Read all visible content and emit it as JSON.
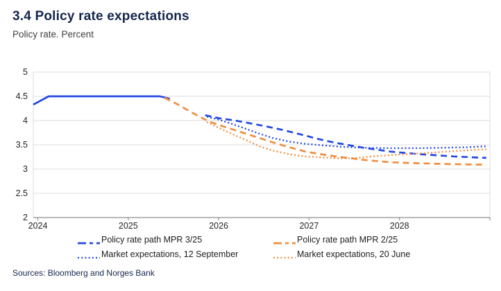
{
  "header": {
    "title": "3.4 Policy rate expectations",
    "subtitle": "Policy rate. Percent"
  },
  "footer": {
    "sources": "Sources: Bloomberg and Norges Bank"
  },
  "colors": {
    "blue": "#2348e4",
    "orange": "#ef8e3f",
    "navy": "#15254d",
    "grid": "#dcdcdc",
    "axis": "#8f8f8f",
    "tick_text": "#242424"
  },
  "chart_data": {
    "type": "line",
    "title": "3.4 Policy rate expectations",
    "subtitle": "Policy rate. Percent",
    "xlabel": "",
    "ylabel": "Policy rate. Percent",
    "xlim": [
      2023.95,
      2029.0
    ],
    "ylim": [
      2,
      5
    ],
    "yticks": [
      5,
      4.5,
      4,
      3.5,
      3,
      2.5,
      2
    ],
    "xticks": [
      2024,
      2025,
      2026,
      2027,
      2028
    ],
    "grid": true,
    "legend_position": "bottom",
    "series": [
      {
        "name": "Policy rate (historical)",
        "color": "#2348e4",
        "style": "solid",
        "in_legend": false,
        "points": [
          [
            2023.95,
            4.33
          ],
          [
            2024.12,
            4.5
          ],
          [
            2025.35,
            4.5
          ],
          [
            2025.46,
            4.45
          ]
        ]
      },
      {
        "name": "Policy rate path MPR 3/25",
        "color": "#2348e4",
        "style": "dashed",
        "in_legend": true,
        "points": [
          [
            2025.85,
            4.11
          ],
          [
            2026.0,
            4.05
          ],
          [
            2026.15,
            4.01
          ],
          [
            2026.3,
            3.96
          ],
          [
            2026.5,
            3.89
          ],
          [
            2026.7,
            3.81
          ],
          [
            2026.96,
            3.69
          ],
          [
            2027.1,
            3.62
          ],
          [
            2027.27,
            3.55
          ],
          [
            2027.45,
            3.49
          ],
          [
            2027.6,
            3.44
          ],
          [
            2027.9,
            3.36
          ],
          [
            2028.2,
            3.31
          ],
          [
            2028.6,
            3.26
          ],
          [
            2028.96,
            3.23
          ]
        ]
      },
      {
        "name": "Policy rate path MPR 2/25",
        "color": "#ef8e3f",
        "style": "dashed",
        "in_legend": true,
        "points": [
          [
            2025.4,
            4.47
          ],
          [
            2025.55,
            4.33
          ],
          [
            2025.7,
            4.17
          ],
          [
            2025.88,
            3.99
          ],
          [
            2026.0,
            3.91
          ],
          [
            2026.15,
            3.82
          ],
          [
            2026.35,
            3.7
          ],
          [
            2026.6,
            3.55
          ],
          [
            2026.8,
            3.44
          ],
          [
            2026.96,
            3.36
          ],
          [
            2027.15,
            3.3
          ],
          [
            2027.3,
            3.26
          ],
          [
            2027.6,
            3.19
          ],
          [
            2027.9,
            3.14
          ],
          [
            2028.2,
            3.12
          ],
          [
            2028.6,
            3.1
          ],
          [
            2028.96,
            3.09
          ]
        ]
      },
      {
        "name": "Market expectations, 12 September",
        "color": "#2348e4",
        "style": "dotted",
        "in_legend": true,
        "points": [
          [
            2025.87,
            4.08
          ],
          [
            2026.0,
            4.02
          ],
          [
            2026.15,
            3.93
          ],
          [
            2026.3,
            3.83
          ],
          [
            2026.45,
            3.73
          ],
          [
            2026.6,
            3.64
          ],
          [
            2026.8,
            3.56
          ],
          [
            2026.96,
            3.52
          ],
          [
            2027.15,
            3.49
          ],
          [
            2027.35,
            3.46
          ],
          [
            2027.6,
            3.44
          ],
          [
            2027.9,
            3.43
          ],
          [
            2028.2,
            3.43
          ],
          [
            2028.5,
            3.44
          ],
          [
            2028.75,
            3.45
          ],
          [
            2028.96,
            3.47
          ]
        ]
      },
      {
        "name": "Market expectations, 20 June",
        "color": "#ef8e3f",
        "style": "dotted",
        "in_legend": true,
        "points": [
          [
            2025.87,
            3.97
          ],
          [
            2026.0,
            3.85
          ],
          [
            2026.15,
            3.72
          ],
          [
            2026.3,
            3.6
          ],
          [
            2026.45,
            3.47
          ],
          [
            2026.6,
            3.38
          ],
          [
            2026.8,
            3.3
          ],
          [
            2026.96,
            3.26
          ],
          [
            2027.15,
            3.24
          ],
          [
            2027.35,
            3.22
          ],
          [
            2027.55,
            3.23
          ],
          [
            2027.75,
            3.27
          ],
          [
            2028.0,
            3.3
          ],
          [
            2028.3,
            3.33
          ],
          [
            2028.6,
            3.37
          ],
          [
            2028.96,
            3.41
          ]
        ]
      }
    ]
  }
}
